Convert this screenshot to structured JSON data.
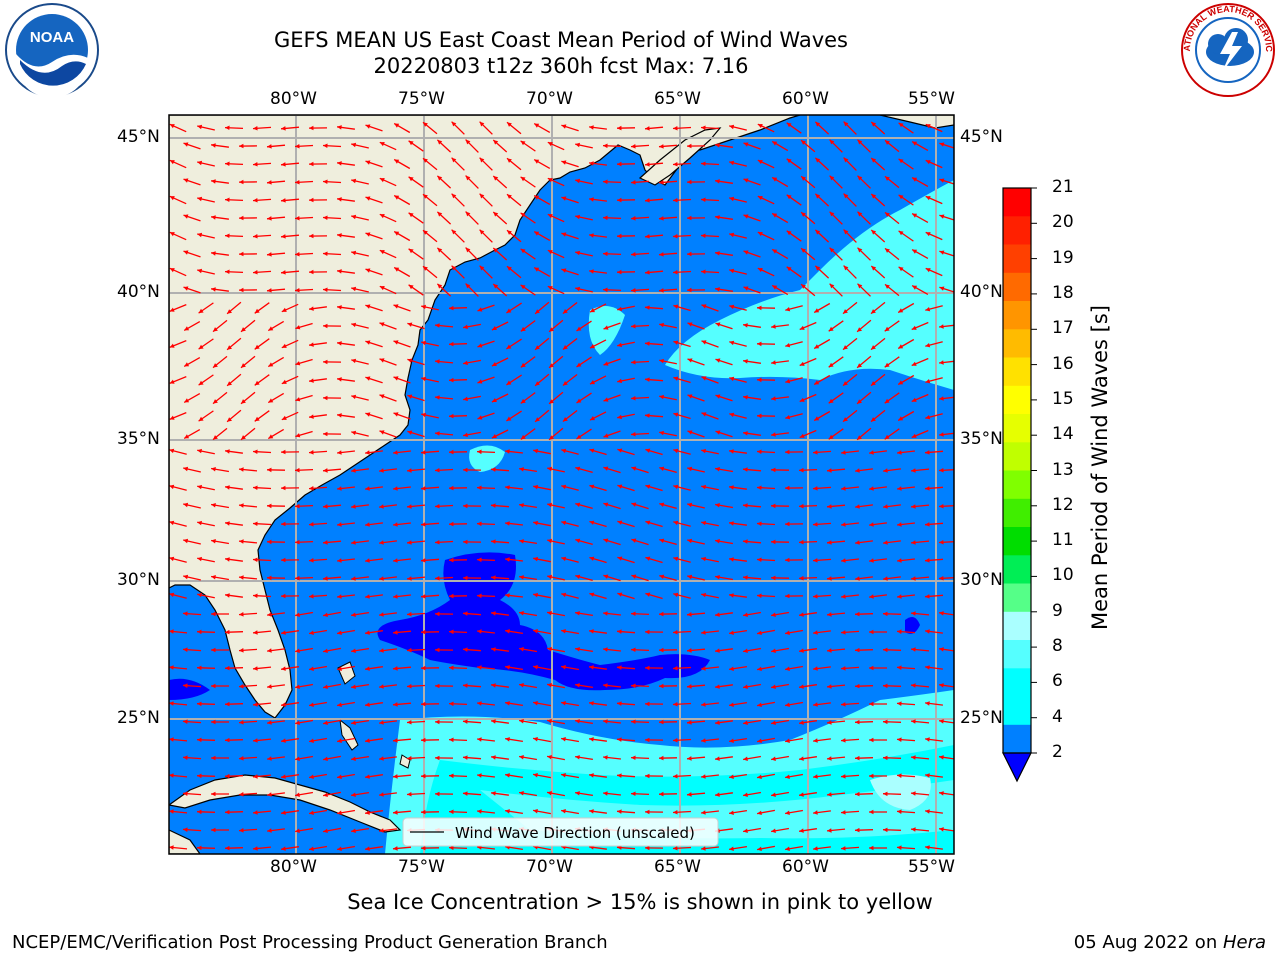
{
  "title": {
    "line1": "GEFS MEAN US East Coast Mean Period of Wind Waves",
    "line2": "20220803 t12z 360h fcst   Max: 7.16"
  },
  "logos": {
    "left": "NOAA",
    "right": "NATIONAL WEATHER SERVICE"
  },
  "map": {
    "lon_labels": [
      "80°W",
      "75°W",
      "70°W",
      "65°W",
      "60°W",
      "55°W"
    ],
    "lat_labels": [
      "45°N",
      "40°N",
      "35°N",
      "30°N",
      "25°N"
    ],
    "legend_text": "Wind Wave Direction (unscaled)",
    "colors": {
      "land": "#efeedd",
      "ocean_2_4": "#0080ff",
      "ocean_lt_2": "#0000ff",
      "ocean_4_6": "#00ffff",
      "ocean_6_8": "#55ffff",
      "ocean_8_9": "#aaffff",
      "arrow": "#ff0000",
      "grid": "#b0b0b0"
    }
  },
  "colorbar": {
    "label": "Mean Period of Wind Waves [s]",
    "ticks": [
      "21",
      "20",
      "19",
      "18",
      "17",
      "16",
      "15",
      "14",
      "13",
      "12",
      "11",
      "10",
      "9",
      "8",
      "6",
      "4",
      "2"
    ],
    "colors": [
      "#ff0000",
      "#ff2000",
      "#ff4000",
      "#ff6a00",
      "#ff9500",
      "#ffbb00",
      "#ffe100",
      "#ffff00",
      "#e6ff00",
      "#c0ff00",
      "#80ff00",
      "#40ee00",
      "#00dd00",
      "#00ee55",
      "#55ff88",
      "#aaffff",
      "#55ffff",
      "#00ffff",
      "#00ffff",
      "#0080ff"
    ],
    "extend_color": "#0000ff"
  },
  "note": "Sea Ice Concentration > 15% is shown in pink to yellow",
  "footer": {
    "left": "NCEP/EMC/Verification Post Processing Product Generation Branch",
    "date": "05 Aug 2022 on ",
    "machine": "Hera"
  }
}
